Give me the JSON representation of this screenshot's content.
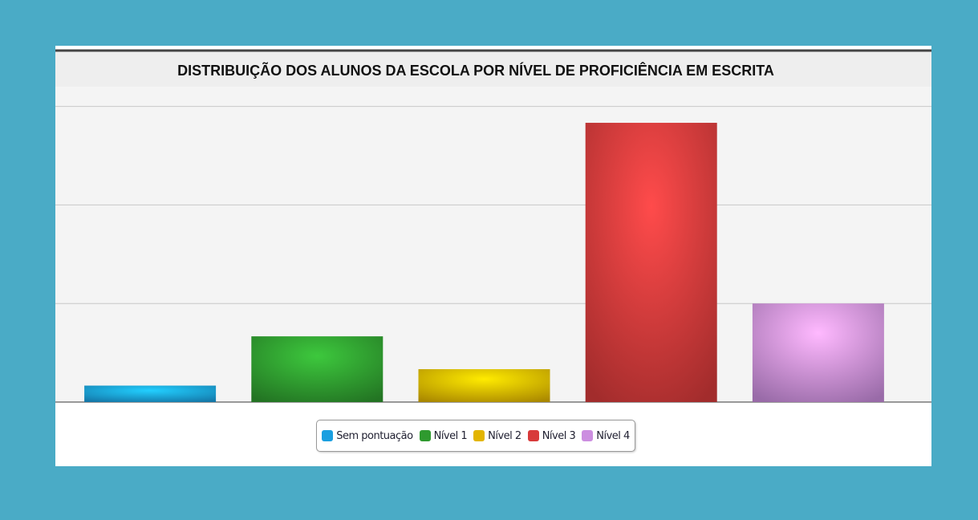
{
  "chart_data": {
    "type": "bar",
    "title": "DISTRIBUIÇÃO DOS ALUNOS DA ESCOLA POR NÍVEL DE PROFICIÊNCIA EM ESCRITA",
    "categories": [
      "Sem pontuação",
      "Nível 1",
      "Nível 2",
      "Nível 3",
      "Nível 4"
    ],
    "values": [
      1,
      4,
      2,
      17,
      6
    ],
    "colors": [
      "#1a9fe0",
      "#2f9a2f",
      "#e3b500",
      "#d83a3a",
      "#cc8ee0"
    ],
    "ylim": [
      0,
      19.2
    ],
    "yticks": [
      0,
      6,
      12,
      18
    ],
    "grid": true,
    "legend": "bottom"
  }
}
